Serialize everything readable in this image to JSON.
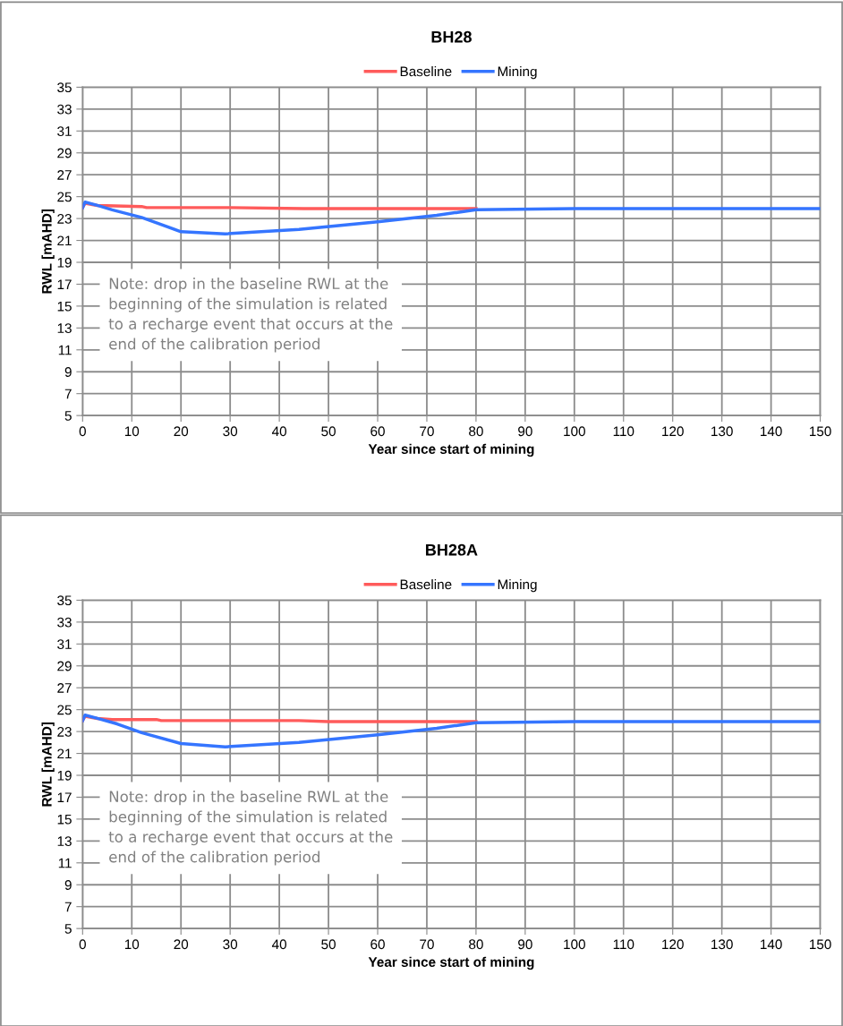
{
  "chart_data": [
    {
      "type": "line",
      "title": "BH28",
      "xlabel": "Year since start of mining",
      "ylabel": "RWL [mAHD]",
      "xlim": [
        0,
        150
      ],
      "ylim": [
        5,
        35
      ],
      "xticks": [
        0,
        10,
        20,
        30,
        40,
        50,
        60,
        70,
        80,
        90,
        100,
        110,
        120,
        130,
        140,
        150
      ],
      "yticks": [
        5,
        7,
        9,
        11,
        13,
        15,
        17,
        19,
        21,
        23,
        25,
        27,
        29,
        31,
        33,
        35
      ],
      "grid": true,
      "legend": "top",
      "marker": "none",
      "line_style": "solid",
      "series": [
        {
          "name": "Baseline",
          "color": "#ff5b5b",
          "x": [
            0,
            0.5,
            3,
            12,
            13,
            30,
            45,
            80
          ],
          "values": [
            24.0,
            24.4,
            24.2,
            24.1,
            24.0,
            24.0,
            23.9,
            23.9
          ]
        },
        {
          "name": "Mining",
          "color": "#3575ff",
          "x": [
            0,
            0.5,
            3,
            6,
            12,
            20,
            29,
            44,
            60,
            72,
            80,
            100,
            150
          ],
          "values": [
            24.0,
            24.5,
            24.2,
            23.8,
            23.1,
            21.8,
            21.6,
            22.0,
            22.7,
            23.3,
            23.8,
            23.9,
            23.9
          ]
        }
      ],
      "annotations": [
        "Note: drop in the baseline RWL at the beginning of the simulation is related to a recharge event that occurs at the end of the calibration period"
      ]
    },
    {
      "type": "line",
      "title": "BH28A",
      "xlabel": "Year since start of mining",
      "ylabel": "RWL [mAHD]",
      "xlim": [
        0,
        150
      ],
      "ylim": [
        5,
        35
      ],
      "xticks": [
        0,
        10,
        20,
        30,
        40,
        50,
        60,
        70,
        80,
        90,
        100,
        110,
        120,
        130,
        140,
        150
      ],
      "yticks": [
        5,
        7,
        9,
        11,
        13,
        15,
        17,
        19,
        21,
        23,
        25,
        27,
        29,
        31,
        33,
        35
      ],
      "grid": true,
      "legend": "top",
      "marker": "none",
      "line_style": "solid",
      "series": [
        {
          "name": "Baseline",
          "color": "#ff5b5b",
          "x": [
            0,
            0.5,
            3,
            6,
            15,
            16,
            44,
            50,
            80
          ],
          "values": [
            24.0,
            24.4,
            24.2,
            24.1,
            24.1,
            24.0,
            24.0,
            23.9,
            23.9
          ]
        },
        {
          "name": "Mining",
          "color": "#3575ff",
          "x": [
            0,
            0.5,
            3,
            7,
            12,
            20,
            29,
            44,
            60,
            72,
            80,
            100,
            150
          ],
          "values": [
            24.0,
            24.5,
            24.2,
            23.7,
            22.9,
            21.9,
            21.6,
            22.0,
            22.7,
            23.3,
            23.8,
            23.9,
            23.9
          ]
        }
      ],
      "annotations": [
        "Note: drop in the baseline RWL at the beginning of the simulation is related to a recharge event that occurs at the end of the calibration period"
      ]
    }
  ]
}
